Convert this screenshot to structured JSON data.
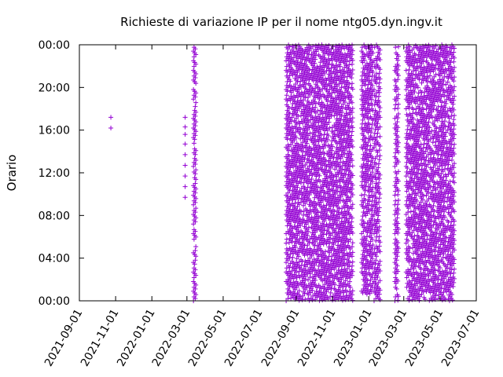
{
  "chart_data": {
    "type": "scatter",
    "title": "Richieste di variazione IP per il nome ntg05.dyn.ingv.it",
    "xlabel": "",
    "ylabel": "Orario",
    "x_type": "date",
    "xlim": [
      "2021-09-01",
      "2023-07-01"
    ],
    "x_ticks": [
      "2021-09-01",
      "2021-11-01",
      "2022-01-01",
      "2022-03-01",
      "2022-05-01",
      "2022-07-01",
      "2022-09-01",
      "2022-11-01",
      "2023-01-01",
      "2023-03-01",
      "2023-05-01",
      "2023-07-01"
    ],
    "ylim": [
      0,
      24
    ],
    "y_ticks": [
      {
        "value": 0,
        "label": "00:00"
      },
      {
        "value": 4,
        "label": "04:00"
      },
      {
        "value": 8,
        "label": "08:00"
      },
      {
        "value": 12,
        "label": "12:00"
      },
      {
        "value": 16,
        "label": "16:00"
      },
      {
        "value": 20,
        "label": "20:00"
      },
      {
        "value": 24,
        "label": "00:00"
      }
    ],
    "marker": "+",
    "color": "#9400d3",
    "grid": false,
    "series": [
      {
        "name": "",
        "points": [
          {
            "x": "2021-10-24",
            "y": 17.2
          },
          {
            "x": "2021-10-24",
            "y": 16.2
          },
          {
            "x": "2022-02-26",
            "y": 17.2
          },
          {
            "x": "2022-02-26",
            "y": 16.3
          },
          {
            "x": "2022-02-26",
            "y": 15.6
          },
          {
            "x": "2022-02-26",
            "y": 14.7
          },
          {
            "x": "2022-02-26",
            "y": 13.7
          },
          {
            "x": "2022-02-26",
            "y": 12.7
          },
          {
            "x": "2022-02-26",
            "y": 11.7
          },
          {
            "x": "2022-02-26",
            "y": 10.7
          },
          {
            "x": "2022-02-26",
            "y": 9.7
          }
        ],
        "dense_bands": [
          {
            "from": "2022-03-12",
            "to": "2022-03-16",
            "y_from": 0,
            "y_to": 24
          },
          {
            "from": "2022-08-15",
            "to": "2022-12-05",
            "y_from": 0,
            "y_to": 24
          },
          {
            "from": "2022-12-20",
            "to": "2023-01-08",
            "y_from": 0.5,
            "y_to": 24
          },
          {
            "from": "2023-01-10",
            "to": "2023-01-20",
            "y_from": 0,
            "y_to": 24
          },
          {
            "from": "2023-02-14",
            "to": "2023-02-20",
            "y_from": 0,
            "y_to": 24
          },
          {
            "from": "2023-03-05",
            "to": "2023-05-25",
            "y_from": 0,
            "y_to": 24
          }
        ]
      }
    ]
  }
}
